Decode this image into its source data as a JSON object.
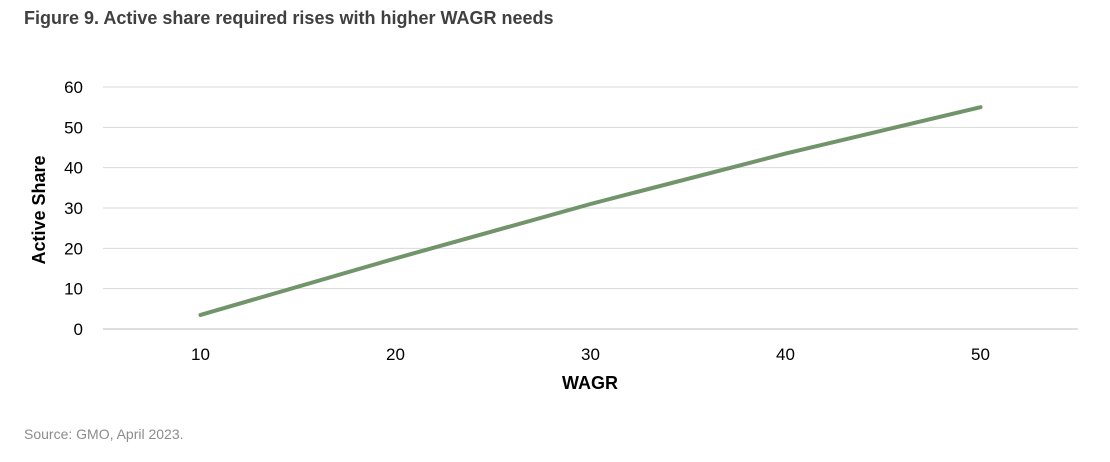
{
  "figure": {
    "title": "Figure 9. Active share required rises with higher WAGR needs",
    "source": "Source: GMO, April 2023."
  },
  "chart_data": {
    "type": "line",
    "title": "Figure 9. Active share required rises with higher WAGR needs",
    "xlabel": "WAGR",
    "ylabel": "Active Share",
    "x_ticks": [
      10,
      20,
      30,
      40,
      50
    ],
    "y_ticks": [
      0,
      10,
      20,
      30,
      40,
      50,
      60
    ],
    "xlim": [
      5,
      55
    ],
    "ylim": [
      0,
      60
    ],
    "grid": "horizontal",
    "legend": "none",
    "series": [
      {
        "color": "#72946a",
        "x": [
          10,
          20,
          30,
          40,
          50
        ],
        "y": [
          3.5,
          17.5,
          31,
          43.5,
          55
        ]
      }
    ]
  }
}
